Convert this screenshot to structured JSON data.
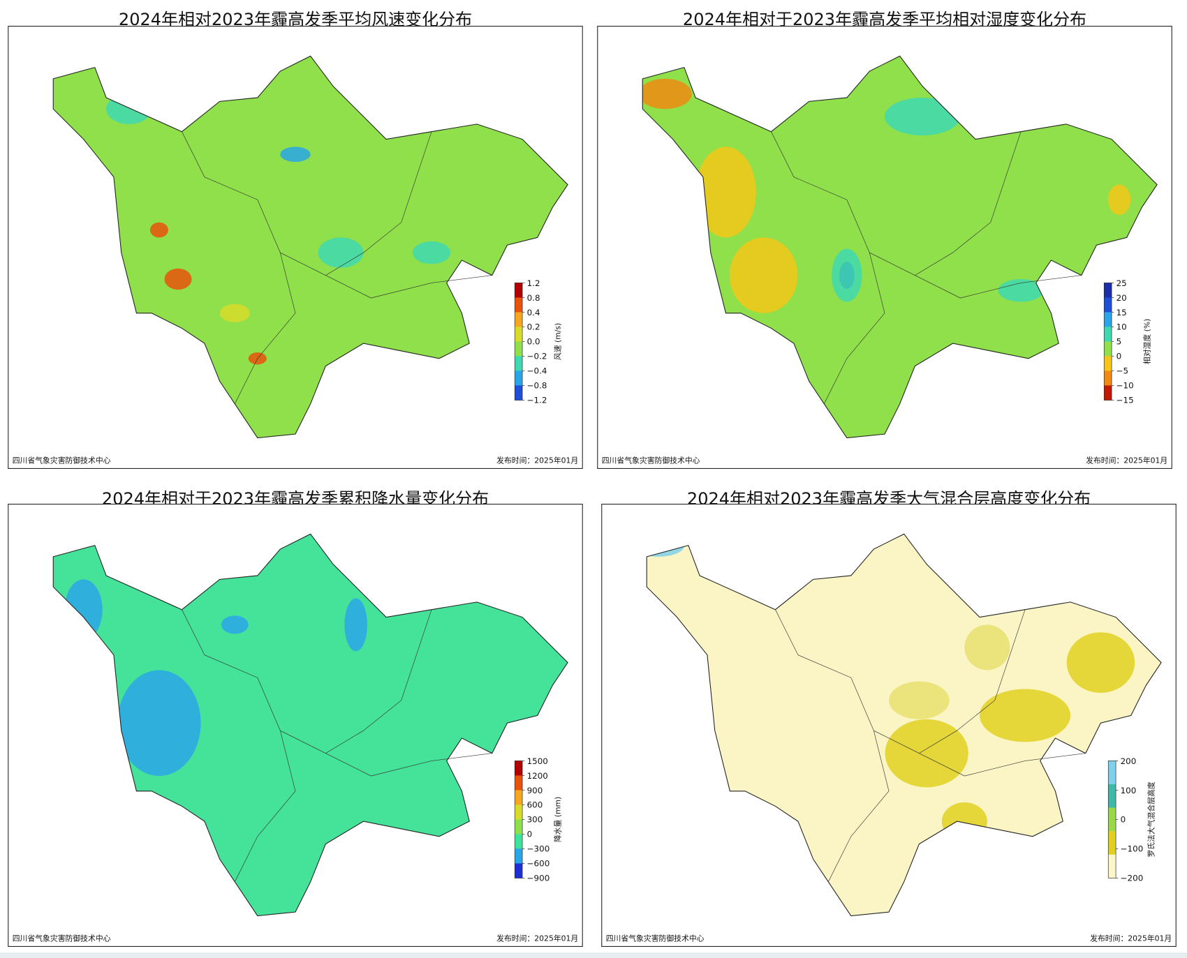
{
  "panels": [
    {
      "title": "2024年相对2023年霾高发季平均风速变化分布",
      "colorbar": {
        "ticks": [
          "1.2",
          "0.8",
          "0.4",
          "0.2",
          "0.0",
          "−0.2",
          "−0.4",
          "−0.8",
          "−1.2"
        ],
        "label": "风速 (m/s)",
        "colors": [
          "#b30000",
          "#e8520a",
          "#f5a623",
          "#d7dc2a",
          "#8fe04a",
          "#3fd8b0",
          "#2aa6e8",
          "#1f4fd6"
        ]
      },
      "map_fill": "#8fe04a",
      "footer_left": "四川省气象灾害防御技术中心",
      "footer_right": "发布时间：2025年01月"
    },
    {
      "title": "2024年相对于2023年霾高发季平均相对湿度变化分布",
      "colorbar": {
        "ticks": [
          "25",
          "20",
          "15",
          "10",
          "5",
          "0",
          "−5",
          "−10",
          "−15"
        ],
        "label": "相对湿度 (%)",
        "colors": [
          "#1c2ea8",
          "#1f4fd6",
          "#2aa6e8",
          "#3fd8b0",
          "#8fe04a",
          "#f5c518",
          "#f08a10",
          "#c21a00"
        ]
      },
      "map_fill": "#8fe04a",
      "footer_left": "四川省气象灾害防御技术中心",
      "footer_right": "发布时间：2025年01月"
    },
    {
      "title": "2024年相对于2023年霾高发季累积降水量变化分布",
      "colorbar": {
        "ticks": [
          "1500",
          "1200",
          "900",
          "600",
          "300",
          "0",
          "−300",
          "−600",
          "−900"
        ],
        "label": "降水量 (mm)",
        "colors": [
          "#b30000",
          "#e8520a",
          "#f5a623",
          "#d7dc2a",
          "#8fe04a",
          "#3fe29a",
          "#2aa6e8",
          "#1f2fd6"
        ]
      },
      "map_fill": "#45e39a",
      "footer_left": "四川省气象灾害防御技术中心",
      "footer_right": "发布时间：2025年01月"
    },
    {
      "title": "2024年相对2023年霾高发季大气混合层高度变化分布",
      "colorbar": {
        "ticks": [
          "200",
          "100",
          "0",
          "−100",
          "−200"
        ],
        "label": "罗氏法大气混合层高度",
        "colors": [
          "#7fd0ea",
          "#3fb8a8",
          "#9ad84a",
          "#e0d020",
          "#fcf6c8"
        ]
      },
      "map_fill": "#fbf5c6",
      "footer_left": "四川省气象灾害防御技术中心",
      "footer_right": "发布时间：2025年01月"
    }
  ]
}
